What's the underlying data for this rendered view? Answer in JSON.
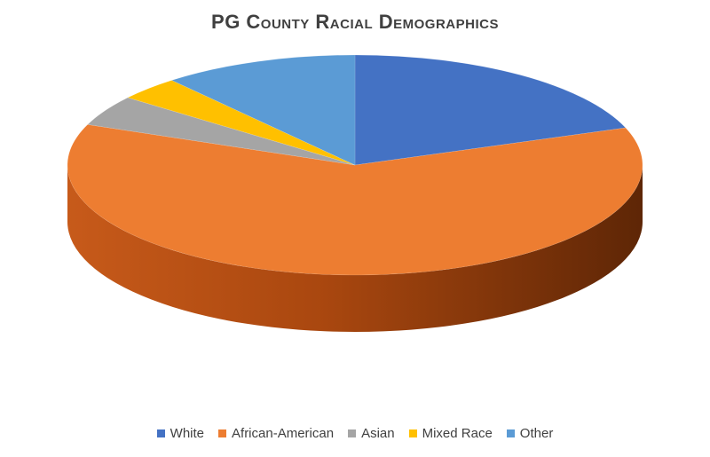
{
  "chart_data": {
    "type": "pie",
    "title": "PG County Racial Demographics",
    "categories": [
      "White",
      "African-American",
      "Asian",
      "Mixed Race",
      "Other"
    ],
    "values": [
      19.5,
      61.5,
      4.5,
      3.5,
      11
    ],
    "colors": [
      "#4472C4",
      "#ED7D31",
      "#A5A5A5",
      "#FFC000",
      "#5B9BD5"
    ],
    "legend": "bottom"
  }
}
